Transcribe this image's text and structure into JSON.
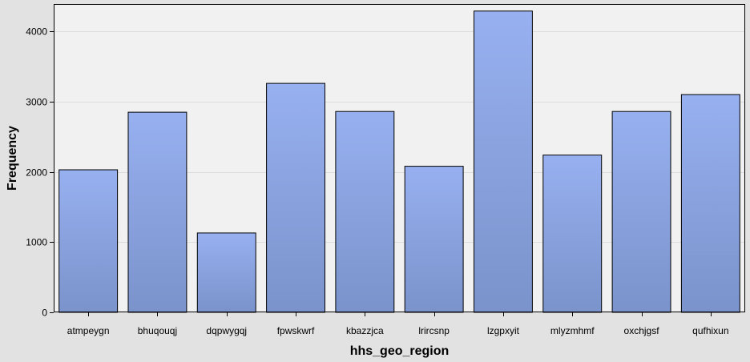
{
  "chart_data": {
    "type": "bar",
    "title": "",
    "xlabel": "hhs_geo_region",
    "ylabel": "Frequency",
    "categories": [
      "atmpeygn",
      "bhuqouqj",
      "dqpwygqj",
      "fpwskwrf",
      "kbazzjca",
      "lrircsnp",
      "lzgpxyit",
      "mlyzmhmf",
      "oxchjgsf",
      "qufhixun"
    ],
    "values": [
      2030,
      2850,
      1130,
      3260,
      2860,
      2080,
      4290,
      2240,
      2860,
      3100
    ],
    "ylim": [
      0,
      4390
    ],
    "yticks": [
      0,
      1000,
      2000,
      3000,
      4000
    ],
    "grid": true,
    "legend": "none"
  },
  "colors": {
    "background": "#e2e2e2",
    "plot_background": "#f1f1f1",
    "bar_top": "#97b0f0",
    "bar_bottom": "#7b93cb",
    "bar_edge": "#000000",
    "grid": "#dcdcdc"
  }
}
